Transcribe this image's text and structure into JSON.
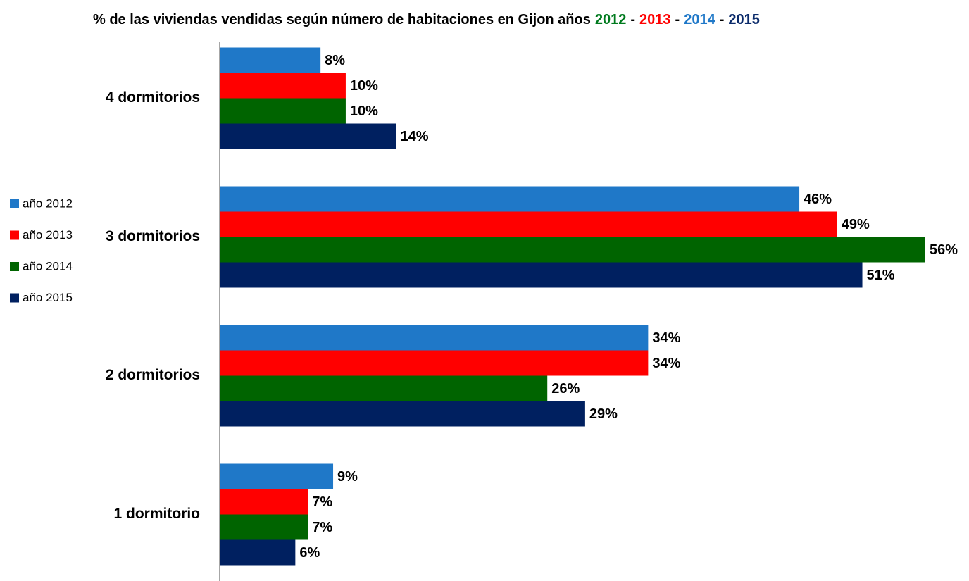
{
  "chart_data": {
    "type": "bar",
    "orientation": "horizontal",
    "title": [
      {
        "text": "% de las viviendas vendidas según número de habitaciones en Gijon años",
        "color": "#000000"
      },
      {
        "text": "2012",
        "color": "#007a1e"
      },
      {
        "text": "-",
        "color": "#000000"
      },
      {
        "text": "2013",
        "color": "#ff0000"
      },
      {
        "text": "-",
        "color": "#000000"
      },
      {
        "text": "2014",
        "color": "#1f78c8"
      },
      {
        "text": "-",
        "color": "#000000"
      },
      {
        "text": "2015",
        "color": "#0a2a6a"
      }
    ],
    "categories": [
      "4 dormitorios",
      "3 dormitorios",
      "2 dormitorios",
      "1 dormitorio"
    ],
    "series": [
      {
        "name": "año 2012",
        "color": "#1f78c8",
        "values": [
          8,
          46,
          34,
          9
        ],
        "value_labels": [
          "8%",
          "46%",
          "34%",
          "9%"
        ]
      },
      {
        "name": "año 2013",
        "color": "#ff0000",
        "values": [
          10,
          49,
          34,
          7
        ],
        "value_labels": [
          "10%",
          "49%",
          "34%",
          "7%"
        ]
      },
      {
        "name": "año 2014",
        "color": "#006400",
        "values": [
          10,
          56,
          26,
          7
        ],
        "value_labels": [
          "10%",
          "56%",
          "26%",
          "7%"
        ]
      },
      {
        "name": "año 2015",
        "color": "#002060",
        "values": [
          14,
          51,
          29,
          6
        ],
        "value_labels": [
          "14%",
          "51%",
          "29%",
          "6%"
        ]
      }
    ],
    "xlim": [
      0,
      56
    ],
    "legend": "left"
  }
}
